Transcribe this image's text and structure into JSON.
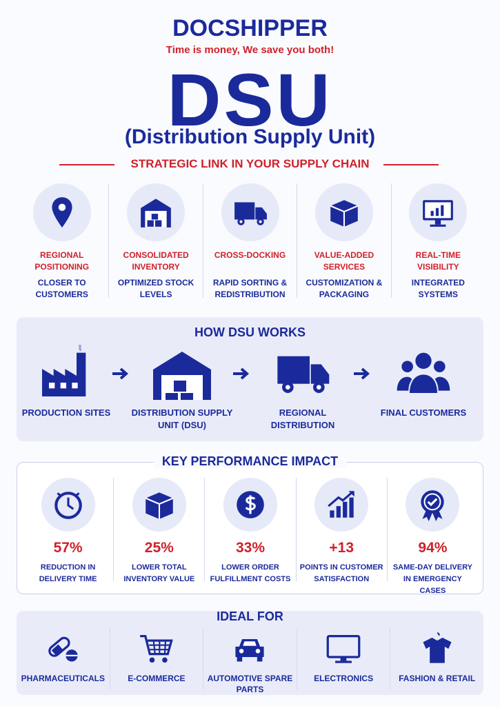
{
  "header": {
    "logo": "DOCSHIPPER",
    "tagline": "Time is money, We save you both!"
  },
  "title": "DSU",
  "subtitle": "(Distribution Supply Unit)",
  "section_heading": "STRATEGIC LINK IN YOUR SUPPLY CHAIN",
  "features": [
    {
      "title": "REGIONAL POSITIONING",
      "text": "CLOSER TO CUSTOMERS"
    },
    {
      "title": "CONSOLIDATED INVENTORY",
      "text": "OPTIMIZED STOCK LEVELS"
    },
    {
      "title": "CROSS-DOCKING",
      "text": "RAPID SORTING & REDISTRIBUTION"
    },
    {
      "title": "VALUE-ADDED SERVICES",
      "text": "CUSTOMIZATION & PACKAGING"
    },
    {
      "title": "REAL-TIME VISIBILITY",
      "text": "INTEGRATED SYSTEMS"
    }
  ],
  "how_it_works": {
    "heading": "HOW DSU WORKS",
    "steps": [
      "PRODUCTION SITES",
      "DISTRIBUTION SUPPLY UNIT (DSU)",
      "REGIONAL DISTRIBUTION",
      "FINAL CUSTOMERS"
    ]
  },
  "impact": {
    "heading": "KEY PERFORMANCE IMPACT",
    "items": [
      {
        "value": "57%",
        "text": "REDUCTION IN DELIVERY TIME"
      },
      {
        "value": "25%",
        "text": "LOWER TOTAL INVENTORY VALUE"
      },
      {
        "value": "33%",
        "text": "LOWER ORDER FULFILLMENT COSTS"
      },
      {
        "value": "+13",
        "text": "POINTS IN CUSTOMER SATISFACTION"
      },
      {
        "value": "94%",
        "text": "SAME-DAY DELIVERY IN EMERGENCY CASES"
      }
    ]
  },
  "ideal_for": {
    "heading": "IDEAL FOR",
    "items": [
      "PHARMACEUTICALS",
      "E-COMMERCE",
      "AUTOMOTIVE SPARE PARTS",
      "ELECTRONICS",
      "FASHION & RETAIL"
    ]
  }
}
